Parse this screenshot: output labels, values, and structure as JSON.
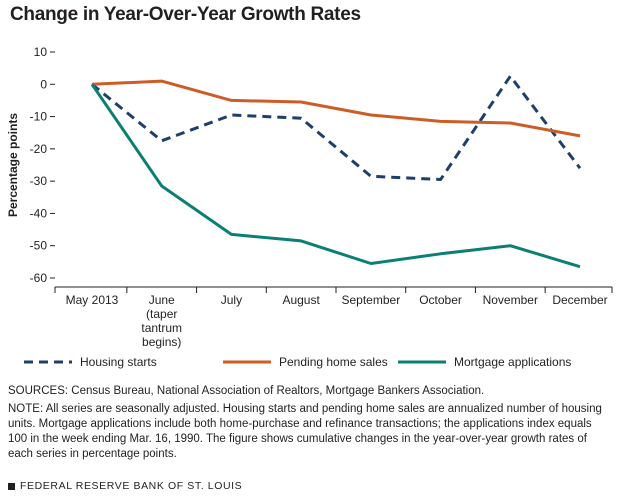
{
  "title": "Change in Year-Over-Year Growth Rates",
  "sources": "SOURCES: Census Bureau, National Association of Realtors, Mortgage Bankers Association.",
  "note": "NOTE: All series are seasonally adjusted. Housing starts and pending home sales are annualized number of housing units. Mortgage applications include both home-purchase and refinance transactions; the applications index equals 100 in the week ending Mar. 16, 1990. The figure shows cumulative changes in the year-over-year growth rates of each series in percentage points.",
  "footer": "FEDERAL RESERVE BANK OF ST. LOUIS",
  "chart_data": {
    "type": "line",
    "categories": [
      [
        "May 2013"
      ],
      [
        "June",
        "(taper",
        "tantrum",
        "begins)"
      ],
      [
        "July"
      ],
      [
        "August"
      ],
      [
        "September"
      ],
      [
        "October"
      ],
      [
        "November"
      ],
      [
        "December"
      ]
    ],
    "ylabel": "Percentage points",
    "ylim": [
      -60,
      10
    ],
    "yticks": [
      10,
      0,
      -10,
      -20,
      -30,
      -40,
      -50,
      -60
    ],
    "grid": false,
    "legend_position": "bottom",
    "series": [
      {
        "name": "Housing starts",
        "color": "#1f3f6b",
        "dashed": true,
        "values": [
          0,
          -17.5,
          -9.5,
          -10.5,
          -28.5,
          -29.5,
          2.5,
          -26
        ]
      },
      {
        "name": "Pending home sales",
        "color": "#cc5d27",
        "dashed": false,
        "values": [
          0,
          1,
          -5,
          -5.5,
          -9.5,
          -11.5,
          -12,
          -16
        ]
      },
      {
        "name": "Mortgage applications",
        "color": "#0b7f74",
        "dashed": false,
        "values": [
          0,
          -31.5,
          -46.5,
          -48.5,
          -55.5,
          -52.5,
          -50,
          -56.5
        ]
      }
    ]
  }
}
